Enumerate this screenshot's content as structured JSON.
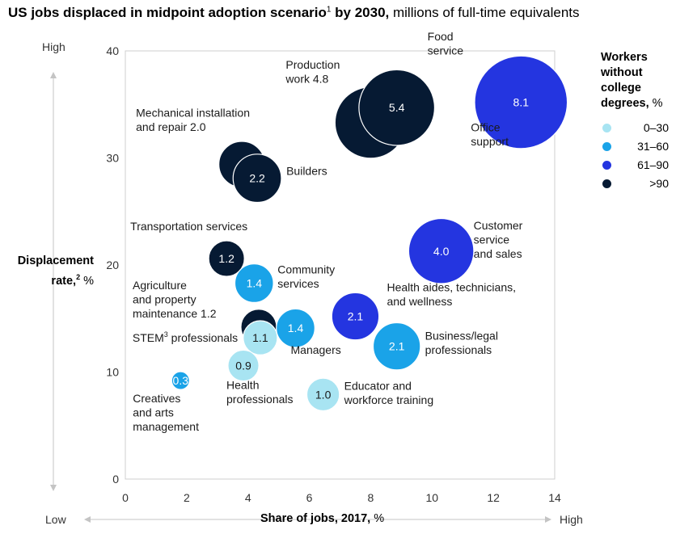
{
  "title": {
    "bold_part": "US jobs displaced in midpoint adoption scenario",
    "footnote": "1",
    "bold_suffix": " by 2030,",
    "rest": " millions of full-time equivalents"
  },
  "axes": {
    "y_label_bold": "Displacement rate,",
    "y_label_footnote": "2",
    "y_label_unit": " %",
    "x_label_bold": "Share of jobs, 2017,",
    "x_label_unit": " %",
    "y_high": "High",
    "x_low": "Low",
    "x_high": "High"
  },
  "legend": {
    "title_line1": "Workers",
    "title_line2": "without",
    "title_line3": "college",
    "title_line4": "degrees,",
    "title_unit": " %",
    "items": [
      {
        "label": "0–30",
        "color": "#a8e4f2"
      },
      {
        "label": "31–60",
        "color": "#1aa3e8"
      },
      {
        "label": "61–90",
        "color": "#2435e0"
      },
      {
        "label": ">90",
        "color": "#061a33"
      }
    ]
  },
  "chart_data": {
    "type": "bubble",
    "xlim": [
      0,
      14
    ],
    "ylim": [
      0,
      40
    ],
    "x_ticks": [
      0,
      2,
      4,
      6,
      8,
      10,
      12,
      14
    ],
    "y_ticks": [
      0,
      10,
      20,
      30,
      40
    ],
    "grid": false,
    "legend_position": "right",
    "points": [
      {
        "label": "Production work 4.8",
        "label_lines": [
          "Production",
          "work 4.8"
        ],
        "x": 8.0,
        "y": 33.3,
        "value": 4.8,
        "value_text": "",
        "group": 3
      },
      {
        "label": "Food service",
        "label_lines": [
          "Food",
          "service"
        ],
        "x": 8.85,
        "y": 34.7,
        "value": 5.4,
        "value_text": "5.4",
        "group": 3
      },
      {
        "label": "Office support",
        "label_lines": [
          "Office",
          "support"
        ],
        "x": 12.9,
        "y": 35.2,
        "value": 8.1,
        "value_text": "8.1",
        "group": 2
      },
      {
        "label": "Mechanical installation and repair 2.0",
        "label_lines": [
          "Mechanical installation",
          "and repair 2.0"
        ],
        "x": 3.8,
        "y": 29.4,
        "value": 2.0,
        "value_text": "",
        "group": 3
      },
      {
        "label": "Builders",
        "label_lines": [
          "Builders"
        ],
        "x": 4.3,
        "y": 28.1,
        "value": 2.2,
        "value_text": "2.2",
        "group": 3
      },
      {
        "label": "Transportation services",
        "label_lines": [
          "Transportation services"
        ],
        "x": 3.3,
        "y": 20.6,
        "value": 1.2,
        "value_text": "1.2",
        "group": 3
      },
      {
        "label": "Community services",
        "label_lines": [
          "Community",
          "services"
        ],
        "x": 4.2,
        "y": 18.3,
        "value": 1.4,
        "value_text": "1.4",
        "group": 1
      },
      {
        "label": "Customer service and sales",
        "label_lines": [
          "Customer",
          "service",
          "and sales"
        ],
        "x": 10.3,
        "y": 21.3,
        "value": 4.0,
        "value_text": "4.0",
        "group": 2
      },
      {
        "label": "Health aides, technicians, and wellness",
        "label_lines": [
          "Health aides, technicians,",
          "and wellness"
        ],
        "x": 7.5,
        "y": 15.2,
        "value": 2.1,
        "value_text": "2.1",
        "group": 2
      },
      {
        "label": "Agriculture and property maintenance 1.2",
        "label_lines": [
          "Agriculture",
          "and property",
          "maintenance 1.2"
        ],
        "x": 4.35,
        "y": 14.2,
        "value": 1.2,
        "value_text": "",
        "group": 3
      },
      {
        "label": "Managers",
        "label_lines": [
          "Managers"
        ],
        "x": 5.55,
        "y": 14.1,
        "value": 1.4,
        "value_text": "1.4",
        "group": 1
      },
      {
        "label": "STEM professionals",
        "label_lines": [
          "STEM professionals"
        ],
        "x": 4.4,
        "y": 13.2,
        "value": 1.1,
        "value_text": "1.1",
        "group": 0
      },
      {
        "label": "Business/legal professionals",
        "label_lines": [
          "Business/legal",
          "professionals"
        ],
        "x": 8.85,
        "y": 12.4,
        "value": 2.1,
        "value_text": "2.1",
        "group": 1
      },
      {
        "label": "Health professionals",
        "label_lines": [
          "Health",
          "professionals"
        ],
        "x": 3.85,
        "y": 10.6,
        "value": 0.9,
        "value_text": "0.9",
        "group": 0
      },
      {
        "label": "Creatives and arts management",
        "label_lines": [
          "Creatives",
          "and arts",
          "management"
        ],
        "x": 1.8,
        "y": 9.2,
        "value": 0.3,
        "value_text": "0.3",
        "group": 1
      },
      {
        "label": "Educator and workforce training",
        "label_lines": [
          "Educator and",
          "workforce training"
        ],
        "x": 6.45,
        "y": 7.9,
        "value": 1.0,
        "value_text": "1.0",
        "group": 0
      }
    ]
  }
}
